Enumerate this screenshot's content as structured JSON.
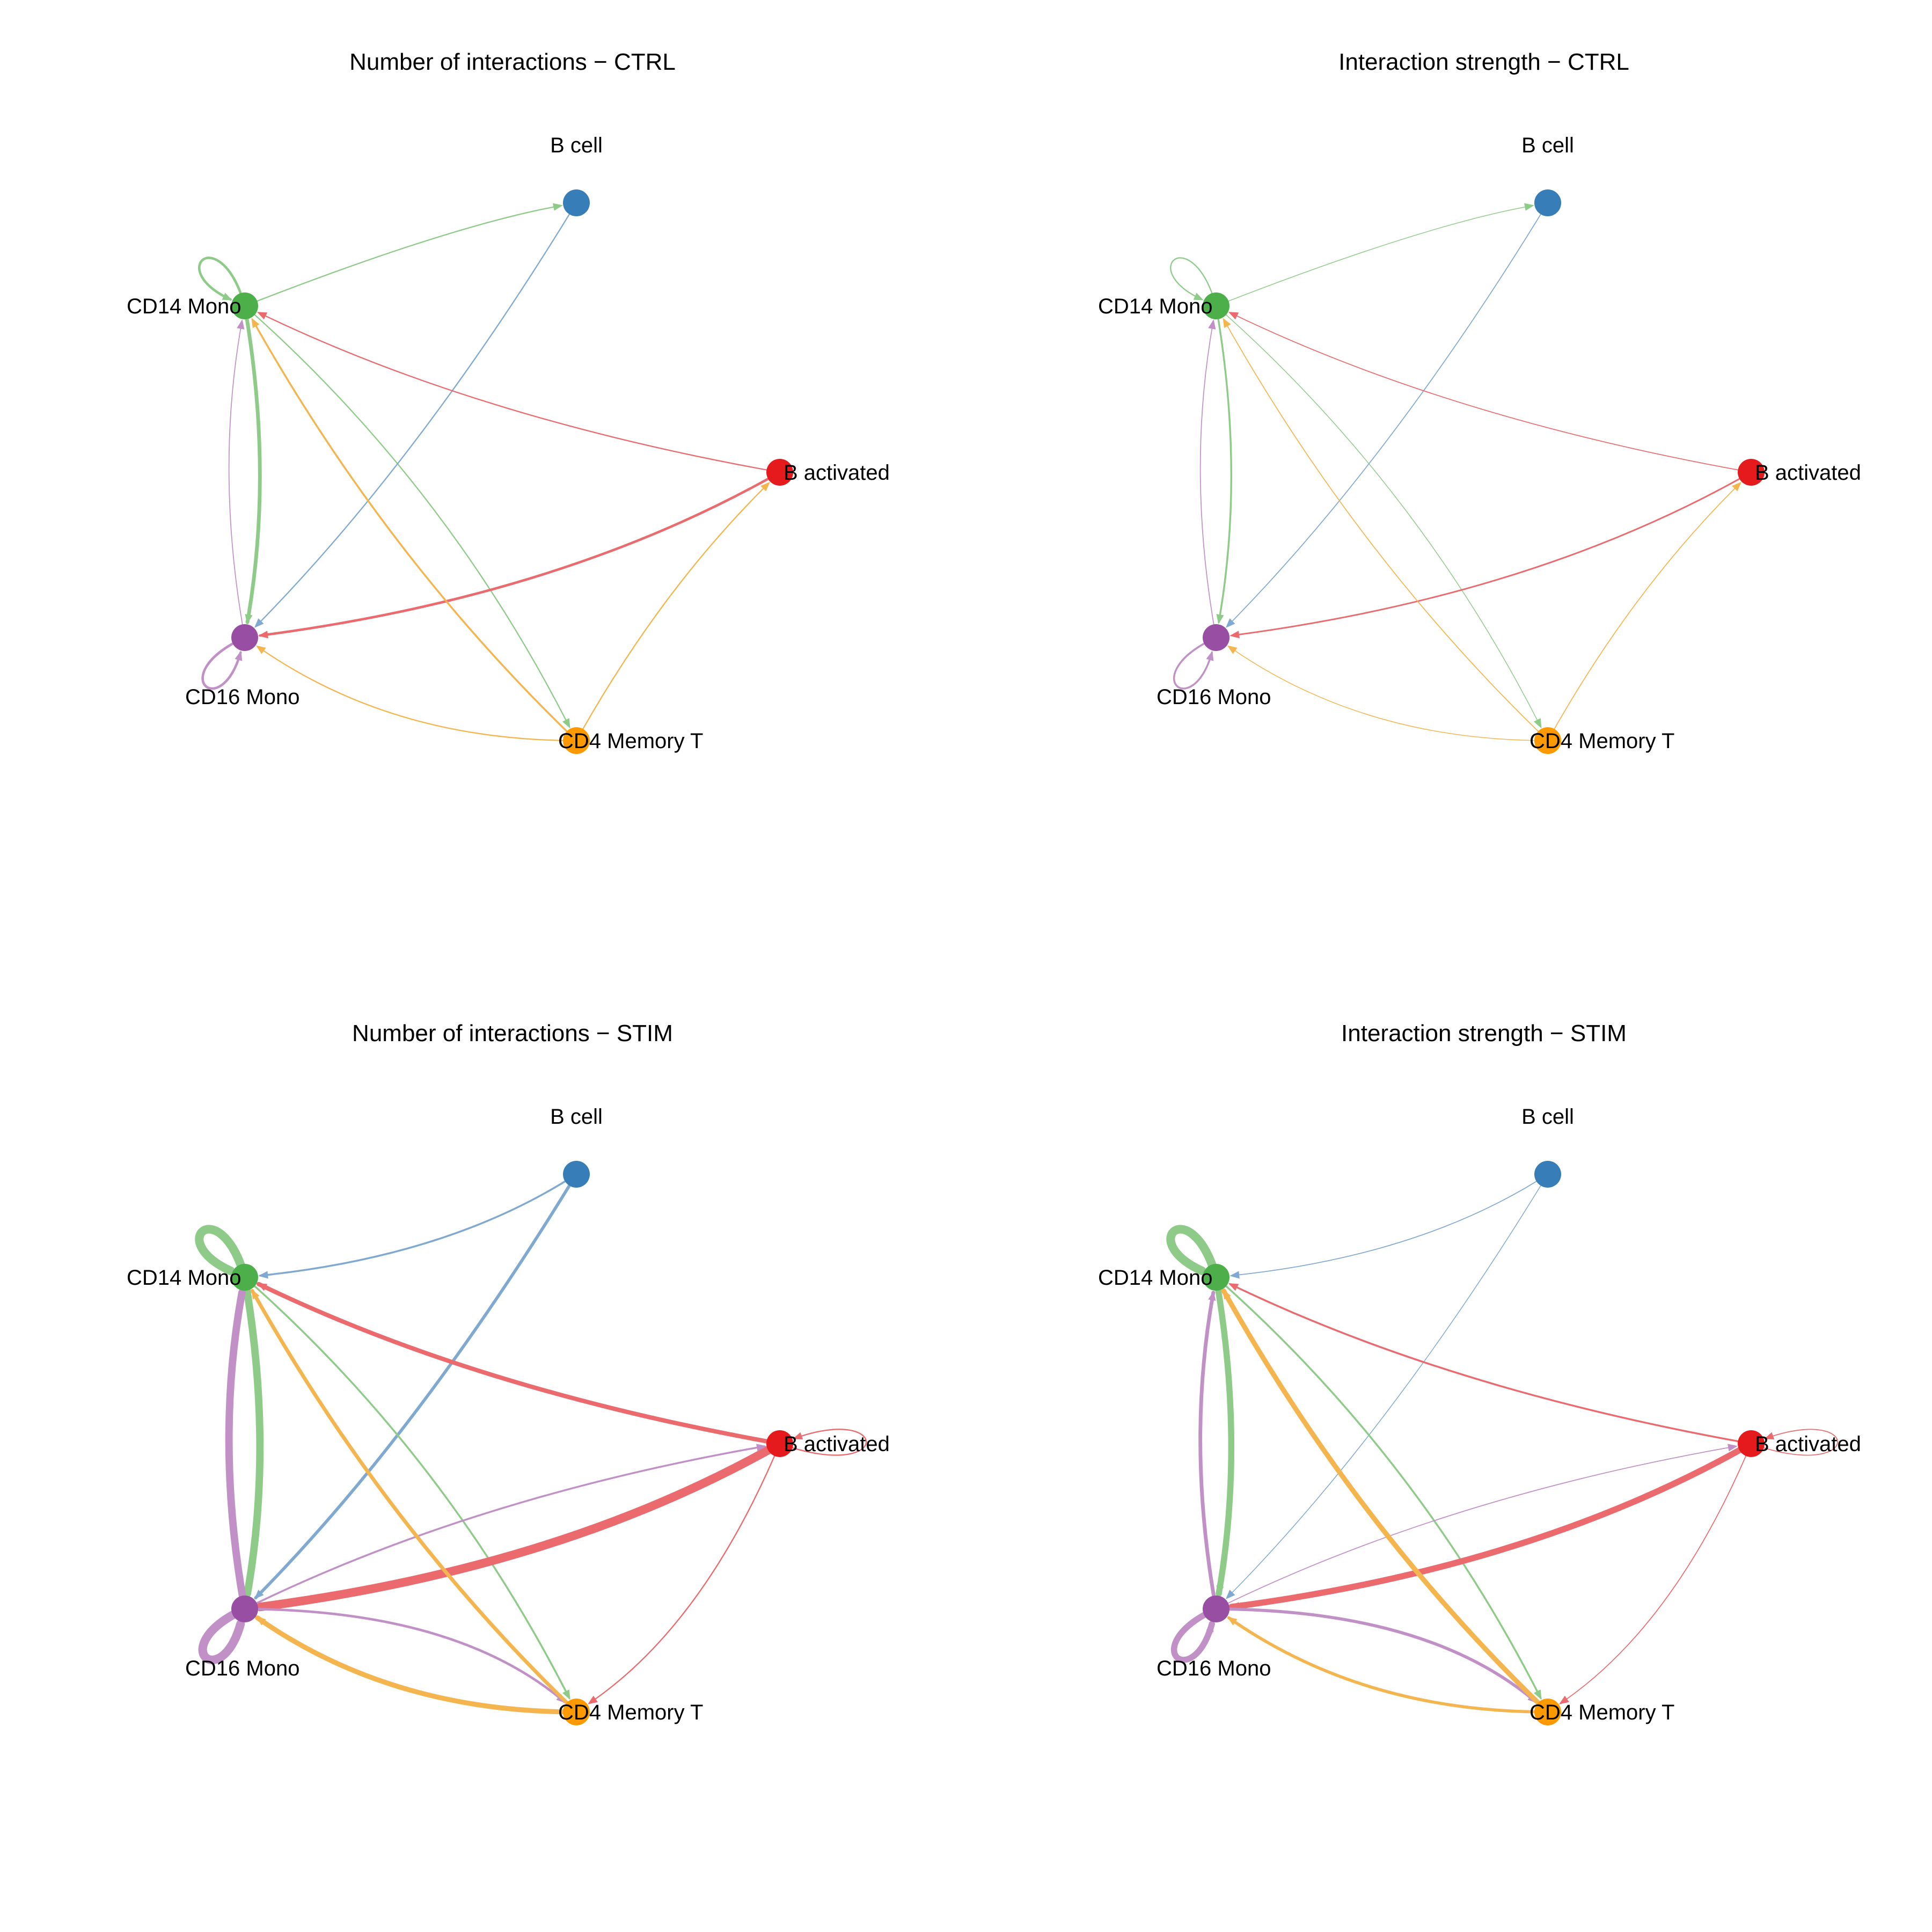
{
  "node_order": [
    "b_cell",
    "cd14",
    "b_act",
    "cd16",
    "cd4"
  ],
  "nodes": {
    "b_cell": {
      "label": "B cell",
      "color": "#377EB8"
    },
    "cd14": {
      "label": "CD14 Mono",
      "color": "#4DAF4A"
    },
    "b_act": {
      "label": "B activated",
      "color": "#E41A1C"
    },
    "cd16": {
      "label": "CD16 Mono",
      "color": "#984EA3"
    },
    "cd4": {
      "label": "CD4 Memory T",
      "color": "#FF9900"
    }
  },
  "edge_colors": {
    "b_cell": "#7FA9D0",
    "cd14": "#8ECB88",
    "b_act": "#EA6A6D",
    "cd16": "#C190C6",
    "cd4": "#F4B54F"
  },
  "panels": [
    {
      "title": "Number of interactions − CTRL",
      "edges": [
        {
          "from": "cd14",
          "to": "cd14",
          "weight": 4
        },
        {
          "from": "cd14",
          "to": "b_cell",
          "weight": 2
        },
        {
          "from": "cd14",
          "to": "cd16",
          "weight": 6
        },
        {
          "from": "cd14",
          "to": "cd4",
          "weight": 2
        },
        {
          "from": "b_cell",
          "to": "cd16",
          "weight": 2
        },
        {
          "from": "b_act",
          "to": "cd14",
          "weight": 2
        },
        {
          "from": "b_act",
          "to": "cd16",
          "weight": 4
        },
        {
          "from": "cd16",
          "to": "cd16",
          "weight": 4
        },
        {
          "from": "cd16",
          "to": "cd14",
          "weight": 1.5
        },
        {
          "from": "cd4",
          "to": "cd14",
          "weight": 3
        },
        {
          "from": "cd4",
          "to": "cd16",
          "weight": 2
        },
        {
          "from": "cd4",
          "to": "b_act",
          "weight": 2
        }
      ]
    },
    {
      "title": "Interaction strength − CTRL",
      "edges": [
        {
          "from": "cd14",
          "to": "cd14",
          "weight": 2
        },
        {
          "from": "cd14",
          "to": "b_cell",
          "weight": 1
        },
        {
          "from": "cd14",
          "to": "cd16",
          "weight": 3
        },
        {
          "from": "cd14",
          "to": "cd4",
          "weight": 0.8
        },
        {
          "from": "b_cell",
          "to": "cd16",
          "weight": 1.5
        },
        {
          "from": "b_act",
          "to": "cd14",
          "weight": 1.5
        },
        {
          "from": "b_act",
          "to": "cd16",
          "weight": 2.5
        },
        {
          "from": "cd16",
          "to": "cd16",
          "weight": 3
        },
        {
          "from": "cd16",
          "to": "cd14",
          "weight": 1.5
        },
        {
          "from": "cd4",
          "to": "cd14",
          "weight": 1.5
        },
        {
          "from": "cd4",
          "to": "cd16",
          "weight": 1
        },
        {
          "from": "cd4",
          "to": "b_act",
          "weight": 1.5
        }
      ]
    },
    {
      "title": "Number of interactions − STIM",
      "edges": [
        {
          "from": "cd14",
          "to": "cd14",
          "weight": 14
        },
        {
          "from": "b_cell",
          "to": "cd14",
          "weight": 3
        },
        {
          "from": "b_cell",
          "to": "cd16",
          "weight": 5
        },
        {
          "from": "cd14",
          "to": "cd16",
          "weight": 12
        },
        {
          "from": "cd14",
          "to": "cd4",
          "weight": 3
        },
        {
          "from": "b_act",
          "to": "cd14",
          "weight": 7
        },
        {
          "from": "b_act",
          "to": "cd16",
          "weight": 14
        },
        {
          "from": "b_act",
          "to": "b_act",
          "weight": 2
        },
        {
          "from": "b_act",
          "to": "cd4",
          "weight": 2
        },
        {
          "from": "cd16",
          "to": "cd14",
          "weight": 12
        },
        {
          "from": "cd16",
          "to": "cd16",
          "weight": 14
        },
        {
          "from": "cd16",
          "to": "b_act",
          "weight": 3
        },
        {
          "from": "cd16",
          "to": "cd4",
          "weight": 4
        },
        {
          "from": "cd4",
          "to": "cd14",
          "weight": 6
        },
        {
          "from": "cd4",
          "to": "cd16",
          "weight": 8
        }
      ]
    },
    {
      "title": "Interaction strength − STIM",
      "edges": [
        {
          "from": "cd14",
          "to": "cd14",
          "weight": 14
        },
        {
          "from": "b_cell",
          "to": "cd14",
          "weight": 1.5
        },
        {
          "from": "b_cell",
          "to": "cd16",
          "weight": 1
        },
        {
          "from": "cd14",
          "to": "cd16",
          "weight": 10
        },
        {
          "from": "cd14",
          "to": "cd4",
          "weight": 3
        },
        {
          "from": "b_act",
          "to": "cd14",
          "weight": 3
        },
        {
          "from": "b_act",
          "to": "cd16",
          "weight": 10
        },
        {
          "from": "b_act",
          "to": "b_act",
          "weight": 1.5
        },
        {
          "from": "b_act",
          "to": "cd4",
          "weight": 1.5
        },
        {
          "from": "cd16",
          "to": "cd14",
          "weight": 6
        },
        {
          "from": "cd16",
          "to": "cd16",
          "weight": 10
        },
        {
          "from": "cd16",
          "to": "b_act",
          "weight": 1.5
        },
        {
          "from": "cd16",
          "to": "cd4",
          "weight": 5
        },
        {
          "from": "cd4",
          "to": "cd14",
          "weight": 8
        },
        {
          "from": "cd4",
          "to": "cd16",
          "weight": 5
        }
      ]
    }
  ]
}
